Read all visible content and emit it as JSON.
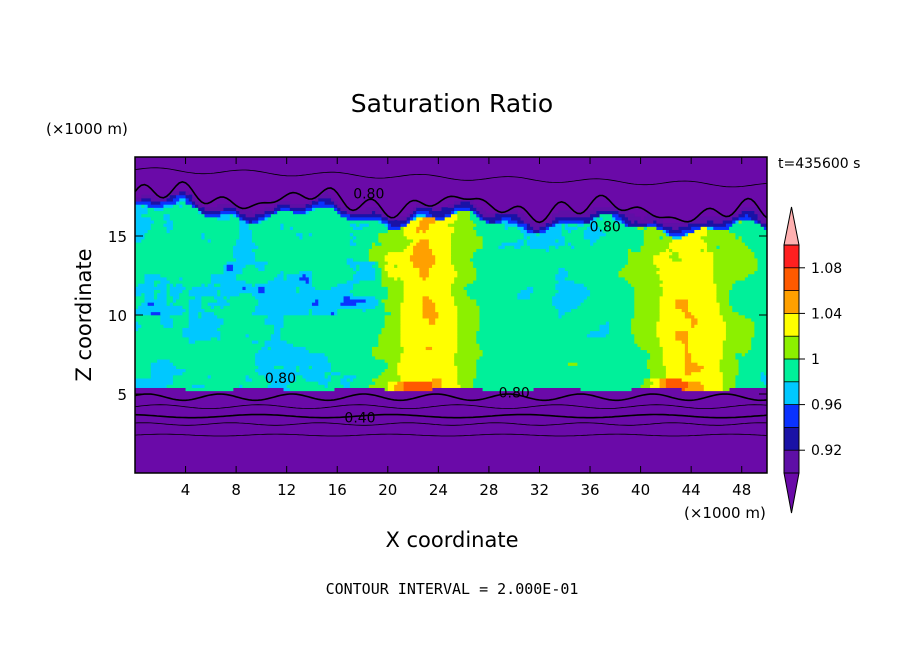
{
  "chart_data": {
    "type": "heatmap",
    "title": "Saturation Ratio",
    "xlabel": "X coordinate",
    "ylabel": "Z coordinate",
    "x_unit": "(×1000 m)",
    "y_unit": "(×1000 m)",
    "time_label": "t=435600 s",
    "footer": "CONTOUR INTERVAL = 2.000E-01",
    "xlim": [
      0,
      50
    ],
    "ylim": [
      0,
      20
    ],
    "x_ticks": [
      4,
      8,
      12,
      16,
      20,
      24,
      28,
      32,
      36,
      40,
      44,
      48
    ],
    "x_tick_labels": [
      "4",
      "8",
      "12",
      "16",
      "20",
      "24",
      "28",
      "32",
      "36",
      "40",
      "44",
      "48"
    ],
    "y_ticks": [
      5,
      10,
      15
    ],
    "y_tick_labels": [
      "5",
      "10",
      "15"
    ],
    "grid": false,
    "colorbar": {
      "levels": [
        0.9,
        0.92,
        0.94,
        0.96,
        0.98,
        1.0,
        1.02,
        1.04,
        1.06,
        1.08,
        1.1
      ],
      "labeled_levels": [
        0.92,
        0.96,
        1.0,
        1.04,
        1.08
      ],
      "tick_labels": [
        "0.92",
        "0.96",
        "1",
        "1.04",
        "1.08"
      ],
      "colors": [
        "#5e0fa6",
        "#1a12a6",
        "#0a32ff",
        "#00c8ff",
        "#00f09a",
        "#8cf000",
        "#ffff00",
        "#ffa000",
        "#ff5a00",
        "#ff2020"
      ],
      "under_color": "#6a0aa8",
      "over_color": "#ffb0b0"
    },
    "contour_labels": [
      {
        "text": "0.80",
        "x": 18.5,
        "y": 17.7
      },
      {
        "text": "0.80",
        "x": 37.2,
        "y": 15.6
      },
      {
        "text": "0.80",
        "x": 11.5,
        "y": 6.0
      },
      {
        "text": "0.80",
        "x": 30.0,
        "y": 5.1
      },
      {
        "text": "0.40",
        "x": 17.8,
        "y": 3.5
      }
    ]
  }
}
